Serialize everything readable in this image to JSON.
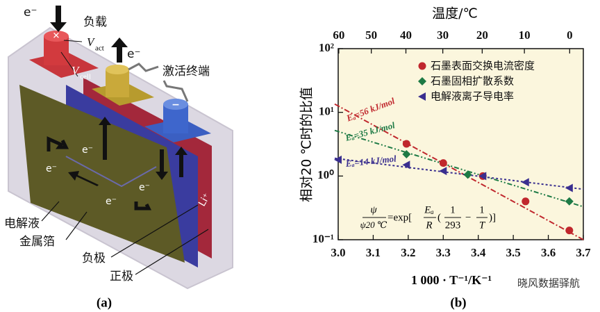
{
  "diagram": {
    "electron_top": "e⁻",
    "load": "负载",
    "v_act": {
      "symbol": "V",
      "subscript": "act"
    },
    "electron_mid": "e⁻",
    "activation_terminal": "激活终端",
    "v_cell": {
      "symbol": "V",
      "subscript": "cell"
    },
    "electrons": [
      "e⁻",
      "e⁻",
      "e⁻",
      "e⁻"
    ],
    "lithium": "Li⁺",
    "electrolyte": "电解液",
    "metal_foil": "金属箔",
    "negative": "负极",
    "positive": "正极",
    "caption": "(a)"
  },
  "chart_data": {
    "type": "scatter",
    "caption": "(b)",
    "x_label": "1 000 · T⁻¹/K⁻¹",
    "x2_label": "温度/℃",
    "y_label": "相对20 ℃时的比值",
    "log_y": true,
    "xlim": [
      3.0,
      3.7
    ],
    "xticks": [
      {
        "value": 3,
        "label": "3.0"
      },
      3.1,
      3.2,
      3.3,
      3.4,
      3.5,
      3.6,
      3.7
    ],
    "x2ticks": [
      60,
      50,
      40,
      30,
      20,
      10,
      0
    ],
    "ylim": [
      0.1,
      100
    ],
    "yticks": [
      {
        "value": 0.1,
        "label": "10⁻¹"
      },
      {
        "value": 1,
        "label": "10⁰"
      },
      {
        "value": 10,
        "label": "10¹"
      },
      {
        "value": 100,
        "label": "10²"
      }
    ],
    "series": [
      {
        "name": "石墨表面交换电流密度",
        "color": "#c0272d",
        "marker": "circle",
        "x": [
          3.195,
          3.3,
          3.413,
          3.535,
          3.66
        ],
        "values": [
          3.2,
          1.6,
          1.0,
          0.4,
          0.14
        ],
        "fit_x": [
          2.99,
          3.7
        ],
        "fit_values": [
          13.5,
          0.1
        ]
      },
      {
        "name": "石墨固相扩散系数",
        "color": "#1d7a45",
        "marker": "diamond",
        "x": [
          3.195,
          3.37,
          3.66
        ],
        "values": [
          2.2,
          1.05,
          0.4
        ],
        "fit_x": [
          2.99,
          3.7
        ],
        "fit_values": [
          5.2,
          0.33
        ]
      },
      {
        "name": "电解液离子导电率",
        "color": "#3a2f8f",
        "marker": "triangle-left",
        "x": [
          3.0,
          3.195,
          3.3,
          3.413,
          3.535,
          3.66
        ],
        "values": [
          1.8,
          1.5,
          1.2,
          1.0,
          0.8,
          0.65
        ],
        "fit_x": [
          2.99,
          3.7
        ],
        "fit_values": [
          1.9,
          0.62
        ]
      }
    ],
    "annotations": [
      {
        "text": "Eₐ=56 kJ/mol",
        "color": "#c0272d"
      },
      {
        "text": "Eₐ=35 kJ/mol",
        "color": "#1d7a45"
      },
      {
        "text": "Eₐ=14 kJ/mol",
        "color": "#3a2f8f"
      }
    ],
    "formula": {
      "numerator": "ψ",
      "denominator": "ψ20 ℃",
      "exp": "=exp[",
      "ea": "Eₐ",
      "r": "R",
      "open": "(",
      "one_a": "1",
      "t0": "293",
      "minus": "−",
      "one_b": "1",
      "t": "T",
      "close": ")]"
    }
  },
  "watermark": "晓风数据驿航"
}
